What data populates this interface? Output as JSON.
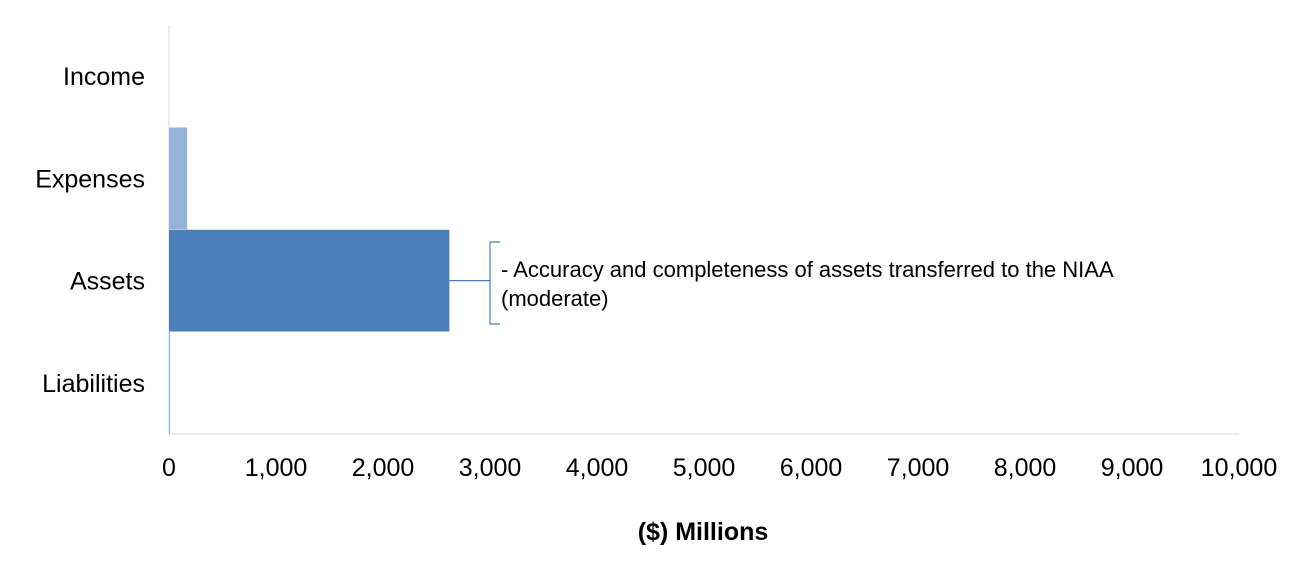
{
  "chart_data": {
    "type": "bar",
    "orientation": "horizontal",
    "categories": [
      "Income",
      "Expenses",
      "Assets",
      "Liabilities"
    ],
    "values": [
      0,
      170,
      2620,
      10
    ],
    "xlim": [
      0,
      10000
    ],
    "xticks": [
      0,
      1000,
      2000,
      3000,
      4000,
      5000,
      6000,
      7000,
      8000,
      9000,
      10000
    ],
    "tick_labels": [
      "0",
      "1,000",
      "2,000",
      "3,000",
      "4,000",
      "5,000",
      "6,000",
      "7,000",
      "8,000",
      "9,000",
      "10,000"
    ],
    "xlabel": "($) Millions",
    "ylabel": "",
    "title": "",
    "grid": false,
    "colors": [
      "#95b3d7",
      "#95b3d7",
      "#4a7ebb",
      "#95b3d7"
    ],
    "annotation": {
      "category": "Assets",
      "lines": [
        "- Accuracy and completeness of assets transferred to the NIAA",
        "(moderate)"
      ],
      "color": "#4a7ebb"
    }
  }
}
